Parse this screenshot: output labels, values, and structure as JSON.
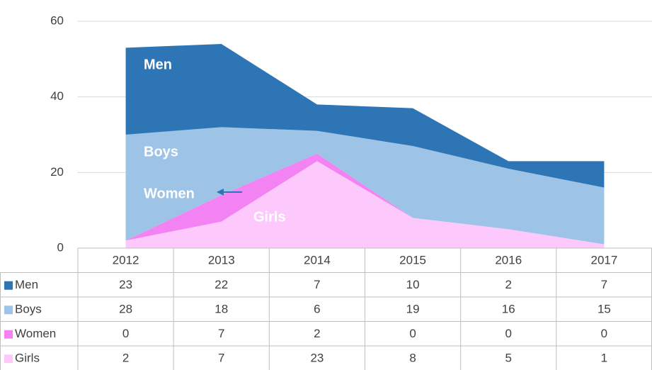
{
  "chart_data": {
    "type": "stacked_area",
    "categories": [
      "2012",
      "2013",
      "2014",
      "2015",
      "2016",
      "2017"
    ],
    "series": [
      {
        "name": "Men",
        "color": "#2e75b6",
        "values": [
          23,
          22,
          7,
          10,
          2,
          7
        ]
      },
      {
        "name": "Boys",
        "color": "#9dc3e6",
        "values": [
          28,
          18,
          6,
          19,
          16,
          15
        ]
      },
      {
        "name": "Women",
        "color": "#f383f3",
        "values": [
          0,
          7,
          2,
          0,
          0,
          0
        ]
      },
      {
        "name": "Girls",
        "color": "#fdc9fd",
        "values": [
          2,
          7,
          23,
          8,
          5,
          1
        ]
      }
    ],
    "ylim": [
      0,
      60
    ],
    "yticks": [
      0,
      20,
      40,
      60
    ],
    "grid": true
  }
}
